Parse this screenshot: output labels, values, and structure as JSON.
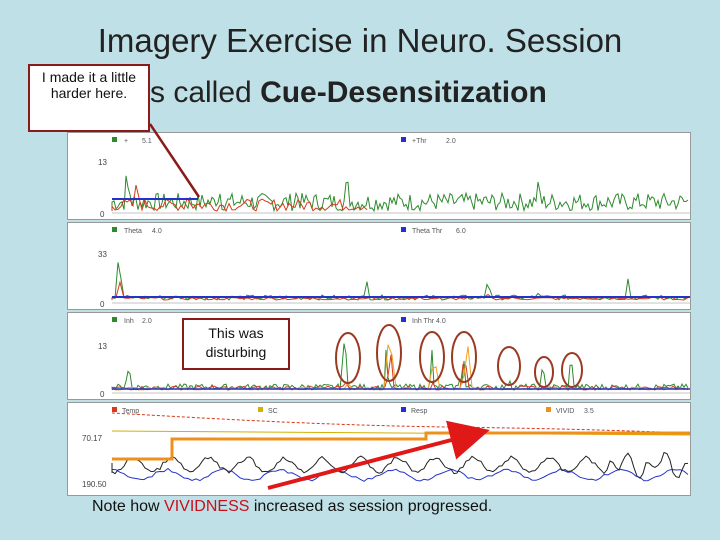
{
  "title": {
    "line1": "Imagery Exercise in Neuro. Session",
    "line2_prefix": "s called ",
    "line2_bold": "Cue-Desensitization"
  },
  "callouts": {
    "top": "I made it a little harder here.",
    "middle": "This was disturbing"
  },
  "panels": [
    {
      "left_label": "+",
      "left_value": "5.1",
      "right_label": "+Thr",
      "right_value": "2.0",
      "y_top": "13",
      "y_bottom": "0"
    },
    {
      "left_label": "Theta",
      "left_value": "4.0",
      "right_label": "Theta Thr",
      "right_value": "6.0",
      "y_top": "33",
      "y_bottom": "0"
    },
    {
      "left_label": "Inh",
      "left_value": "2.0",
      "right_label": "Inh Thr",
      "right_value": "4.0",
      "y_top": "13",
      "y_bottom": "0"
    },
    {
      "legend": [
        "Temp",
        "SC",
        "Resp",
        "VIVID"
      ],
      "legend_values": [
        "",
        "",
        "",
        "3.5"
      ],
      "y_top": "70.17",
      "y_bottom": "190.50"
    }
  ],
  "note": {
    "prefix": "Note how ",
    "highlight": "VIVIDNESS",
    "suffix": " increased as session progressed."
  },
  "colors": {
    "background": "#bfe0e6",
    "callout_border": "#8b1a1a",
    "arrow": "#e01818",
    "vivid": "#f0901c",
    "green": "#2d8a2d",
    "red": "#d63a1a",
    "blue": "#2233cc",
    "circle": "#9a3a22"
  }
}
